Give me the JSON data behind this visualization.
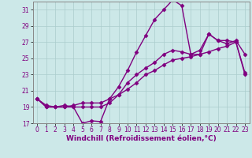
{
  "xlabel": "Windchill (Refroidissement éolien,°C)",
  "bg_color": "#cce8e8",
  "line_color": "#800080",
  "grid_color": "#aacccc",
  "xlim": [
    -0.5,
    23.5
  ],
  "ylim": [
    17,
    32
  ],
  "xticks": [
    0,
    1,
    2,
    3,
    4,
    5,
    6,
    7,
    8,
    9,
    10,
    11,
    12,
    13,
    14,
    15,
    16,
    17,
    18,
    19,
    20,
    21,
    22,
    23
  ],
  "yticks": [
    17,
    19,
    21,
    23,
    25,
    27,
    29,
    31
  ],
  "line1_x": [
    0,
    1,
    2,
    3,
    4,
    5,
    6,
    7,
    8,
    9,
    10,
    11,
    12,
    13,
    14,
    15,
    16,
    17,
    18,
    19,
    20,
    21,
    22,
    23
  ],
  "line1_y": [
    20.0,
    19.0,
    19.0,
    19.2,
    19.0,
    17.0,
    17.3,
    17.2,
    20.0,
    21.5,
    23.5,
    25.8,
    27.8,
    29.8,
    31.0,
    32.2,
    31.5,
    25.5,
    25.5,
    28.0,
    27.2,
    26.8,
    27.2,
    25.5
  ],
  "line2_x": [
    0,
    1,
    2,
    3,
    4,
    5,
    6,
    7,
    8,
    9,
    10,
    11,
    12,
    13,
    14,
    15,
    16,
    17,
    18,
    19,
    20,
    21,
    22,
    23
  ],
  "line2_y": [
    20.0,
    19.0,
    19.0,
    19.0,
    19.0,
    19.0,
    19.0,
    19.0,
    19.5,
    20.5,
    22.0,
    23.0,
    23.8,
    24.5,
    25.5,
    26.0,
    25.8,
    25.5,
    26.0,
    28.0,
    27.2,
    27.2,
    27.0,
    23.0
  ],
  "line3_x": [
    0,
    1,
    2,
    3,
    4,
    5,
    6,
    7,
    8,
    9,
    10,
    11,
    12,
    13,
    14,
    15,
    16,
    17,
    18,
    19,
    20,
    21,
    22,
    23
  ],
  "line3_y": [
    20.0,
    19.2,
    19.0,
    19.0,
    19.2,
    19.5,
    19.5,
    19.5,
    20.0,
    20.5,
    21.2,
    22.0,
    23.0,
    23.5,
    24.2,
    24.8,
    25.0,
    25.2,
    25.5,
    25.8,
    26.2,
    26.5,
    27.0,
    23.2
  ],
  "marker": "D",
  "markersize": 2.5,
  "linewidth": 1.0,
  "tick_fontsize": 5.5,
  "label_fontsize": 6.5
}
